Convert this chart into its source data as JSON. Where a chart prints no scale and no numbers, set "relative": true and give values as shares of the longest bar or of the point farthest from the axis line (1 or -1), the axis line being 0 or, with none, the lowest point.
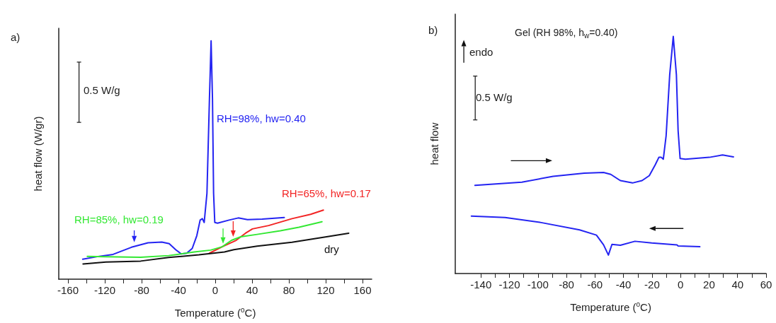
{
  "chart_data": [
    {
      "type": "line",
      "title": "a)",
      "xlabel": "Temperature ($^{o}$C)",
      "ylabel": "heat flow (W/gr)",
      "annotations": [
        "0.5 W/g"
      ],
      "relative": true,
      "marker": "none",
      "line_style": "solid",
      "xlim": [
        -170,
        170
      ],
      "xticks": [
        -160,
        {
          "value": -140,
          "label": null
        },
        -120,
        {
          "value": -100,
          "label": null
        },
        -80,
        {
          "value": -60,
          "label": null
        },
        -40,
        {
          "value": -20,
          "label": null
        },
        0,
        {
          "value": 20,
          "label": null
        },
        40,
        {
          "value": 60,
          "label": null
        },
        80,
        {
          "value": 100,
          "label": null
        },
        120,
        {
          "value": 140,
          "label": null
        },
        160
      ],
      "series": [
        {
          "name": "RH=98%, hw=0.40",
          "color": "#2424f2",
          "x": [
            -144,
            -126,
            -111,
            -91,
            -73,
            -58,
            -50,
            -43,
            -37,
            -31,
            -25,
            -20,
            -16.4,
            -14,
            -12,
            -9,
            -6.3,
            -4.5,
            -3,
            -1.8,
            -0.5,
            2.5,
            15,
            25,
            35,
            51,
            75
          ],
          "values": [
            0.084,
            0.096,
            0.104,
            0.134,
            0.153,
            0.156,
            0.149,
            0.124,
            0.106,
            0.109,
            0.129,
            0.183,
            0.248,
            0.254,
            0.238,
            0.361,
            0.757,
            1,
            0.757,
            0.361,
            0.238,
            0.235,
            0.248,
            0.257,
            0.25,
            0.252,
            0.259
          ]
        },
        {
          "name": "RH=65%, hw=0.17",
          "color": "#f22424",
          "x": [
            -6.3,
            7.6,
            22.7,
            32.9,
            40.4,
            58,
            83.4,
            103.6,
            117.5
          ],
          "values": [
            0.109,
            0.136,
            0.163,
            0.193,
            0.211,
            0.225,
            0.254,
            0.272,
            0.29
          ]
        },
        {
          "name": "RH=85%, hw=0.19",
          "color": "#33e833",
          "x": [
            -139,
            -119,
            -81,
            -50.6,
            -22.8,
            -5,
            7.6,
            17.7,
            27.8,
            45.5,
            70.8,
            91,
            116
          ],
          "values": [
            0.096,
            0.094,
            0.092,
            0.099,
            0.114,
            0.122,
            0.136,
            0.163,
            0.178,
            0.188,
            0.203,
            0.218,
            0.241
          ]
        },
        {
          "name": "dry",
          "color": "#111111",
          "x": [
            -143.6,
            -118.8,
            -81,
            -50.6,
            -17.7,
            10,
            20.2,
            45.5,
            83.4,
            121,
            145
          ],
          "values": [
            0.064,
            0.072,
            0.076,
            0.091,
            0.102,
            0.114,
            0.124,
            0.139,
            0.155,
            0.178,
            0.193
          ]
        }
      ]
    },
    {
      "type": "line",
      "title": "b)",
      "subtitle": "Gel (RH 98%, h$_{w}$=0.40)",
      "xlabel": "Temperature ($^{o}$C)",
      "ylabel": "heat flow",
      "annotations": [
        "endo",
        "0.5 W/g"
      ],
      "relative": true,
      "marker": "none",
      "line_style": "solid",
      "xlim": [
        -158,
        60
      ],
      "xticks": [
        -140,
        {
          "value": -130,
          "label": null
        },
        -120,
        {
          "value": -110,
          "label": null
        },
        -100,
        {
          "value": -90,
          "label": null
        },
        -80,
        {
          "value": -70,
          "label": null
        },
        -60,
        {
          "value": -50,
          "label": null
        },
        -40,
        {
          "value": -30,
          "label": null
        },
        -20,
        {
          "value": -10,
          "label": null
        },
        0,
        {
          "value": 10,
          "label": null
        },
        20,
        {
          "value": 30,
          "label": null
        },
        40,
        {
          "value": 50,
          "label": null
        },
        60
      ],
      "series": [
        {
          "color": "#2424f2",
          "x": [
            -144.2,
            -111.3,
            -89.4,
            -67.5,
            -54,
            -48.9,
            -42.2,
            -33.7,
            -27,
            -21.9,
            -17.7,
            -15.2,
            -13.5,
            -12.1,
            -10.1,
            -7.6,
            -5.1,
            -2.9,
            -1.7,
            -0.3,
            3.4,
            20.2,
            29.5,
            37.1
          ],
          "values": [
            0.372,
            0.385,
            0.41,
            0.423,
            0.426,
            0.418,
            0.392,
            0.382,
            0.392,
            0.413,
            0.459,
            0.49,
            0.49,
            0.482,
            0.582,
            0.838,
            1,
            0.838,
            0.602,
            0.485,
            0.482,
            0.49,
            0.5,
            0.492
          ]
        },
        {
          "color": "#2424f2",
          "x": [
            -146.7,
            -123,
            -97.8,
            -70.8,
            -59,
            -54,
            -50.6,
            -48.1,
            -42.2,
            -32,
            -20.2,
            -2.5,
            -1.7,
            13.5
          ],
          "values": [
            0.242,
            0.236,
            0.215,
            0.184,
            0.162,
            0.121,
            0.078,
            0.123,
            0.119,
            0.136,
            0.129,
            0.121,
            0.116,
            0.113
          ]
        }
      ]
    }
  ]
}
